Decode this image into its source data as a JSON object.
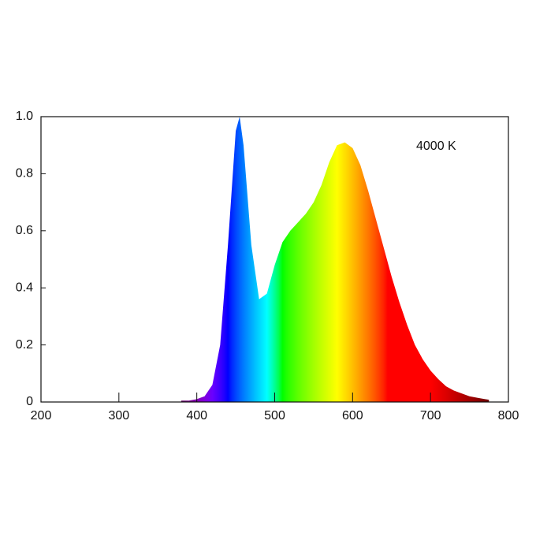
{
  "chart_data": {
    "type": "area",
    "annotation": "4000 K",
    "x": [
      380,
      390,
      400,
      410,
      420,
      430,
      440,
      450,
      455,
      460,
      470,
      480,
      490,
      500,
      510,
      520,
      530,
      540,
      550,
      560,
      570,
      580,
      590,
      600,
      610,
      620,
      630,
      640,
      650,
      660,
      670,
      680,
      690,
      700,
      710,
      720,
      730,
      740,
      750,
      760,
      770,
      775
    ],
    "values": [
      0.005,
      0.005,
      0.01,
      0.02,
      0.06,
      0.2,
      0.55,
      0.95,
      1.0,
      0.9,
      0.55,
      0.36,
      0.38,
      0.48,
      0.56,
      0.6,
      0.63,
      0.66,
      0.7,
      0.76,
      0.84,
      0.9,
      0.91,
      0.89,
      0.83,
      0.74,
      0.64,
      0.54,
      0.44,
      0.35,
      0.27,
      0.2,
      0.15,
      0.11,
      0.08,
      0.055,
      0.04,
      0.03,
      0.02,
      0.015,
      0.01,
      0.008
    ],
    "fill": "spectrum",
    "xlim": [
      200,
      800
    ],
    "xticks": [
      200,
      300,
      400,
      500,
      600,
      700,
      800
    ],
    "ylim": [
      0,
      1
    ],
    "yticks": [
      0,
      0.2,
      0.4,
      0.6,
      0.8,
      {
        "value": 1,
        "label": "1.0"
      }
    ],
    "grid": false
  }
}
